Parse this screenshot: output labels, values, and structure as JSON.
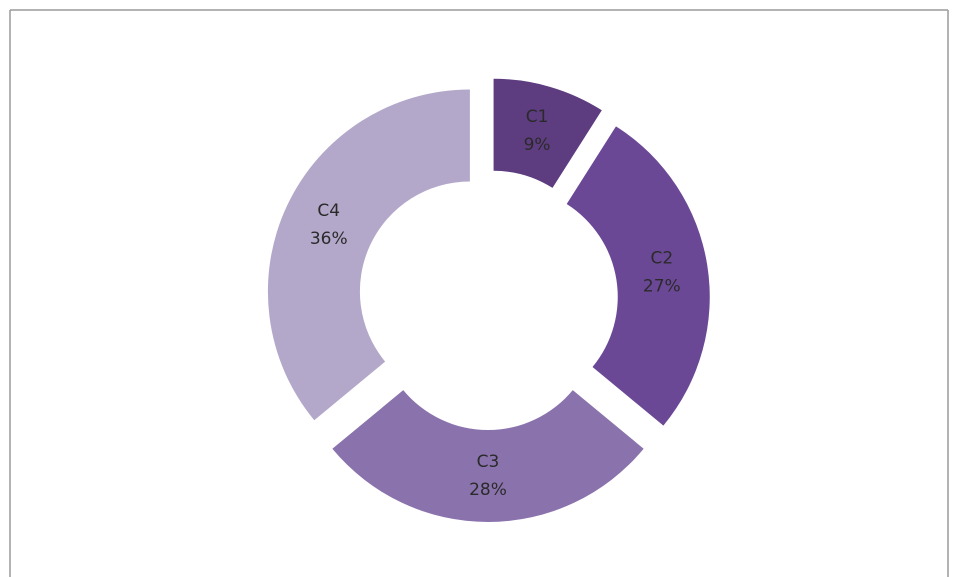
{
  "chart_data": {
    "type": "donut",
    "categories": [
      "C1",
      "C2",
      "C3",
      "C4"
    ],
    "values": [
      9,
      27,
      28,
      36
    ],
    "value_labels": [
      "9%",
      "27%",
      "28%",
      "36%"
    ],
    "colors": [
      "#5d3c80",
      "#6b4896",
      "#8a73ad",
      "#b3a8ca"
    ]
  }
}
